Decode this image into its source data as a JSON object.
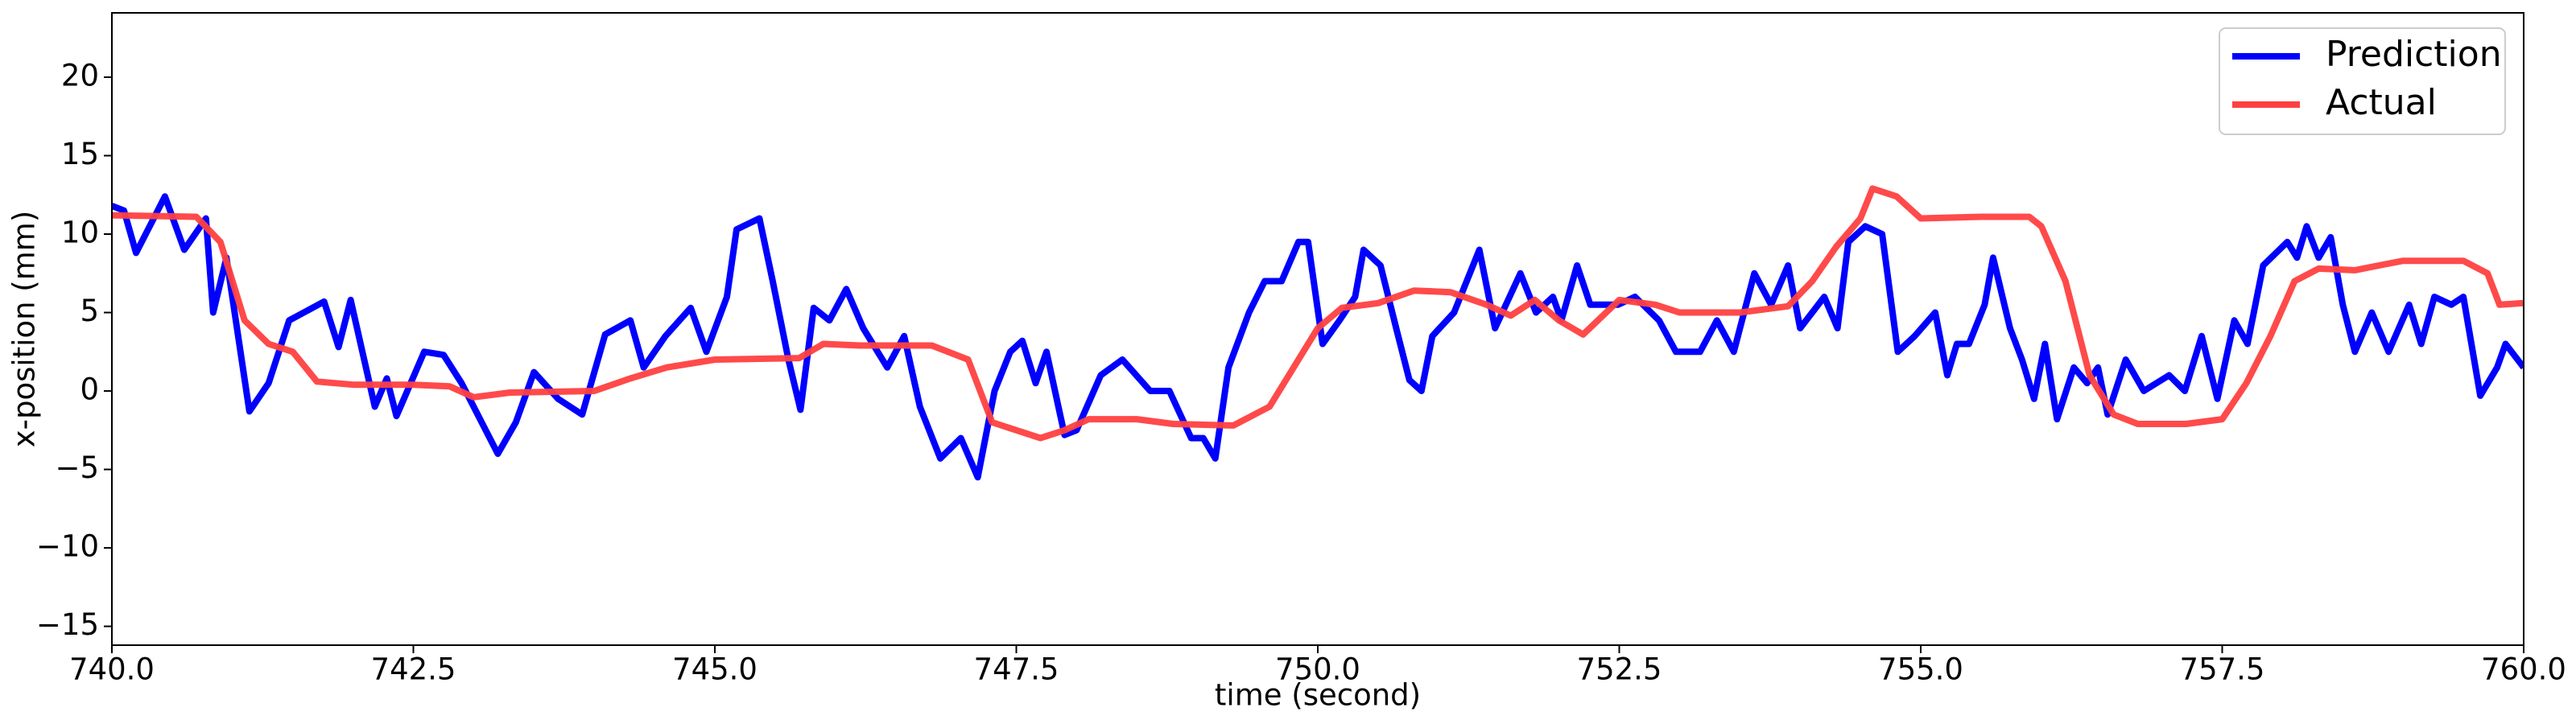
{
  "chart_data": {
    "type": "line",
    "xlabel": "time (second)",
    "ylabel": "x-position (mm)",
    "xlim": [
      740,
      760
    ],
    "xticks": [
      {
        "value": 740,
        "label": "740.0"
      },
      {
        "value": 742.5,
        "label": "742.5"
      },
      {
        "value": 745,
        "label": "745.0"
      },
      {
        "value": 747.5,
        "label": "747.5"
      },
      {
        "value": 750,
        "label": "750.0"
      },
      {
        "value": 752.5,
        "label": "752.5"
      },
      {
        "value": 755,
        "label": "755.0"
      },
      {
        "value": 757.5,
        "label": "757.5"
      },
      {
        "value": 760,
        "label": "760.0"
      }
    ],
    "ylim": [
      -16.2,
      24.1
    ],
    "yticks": [
      {
        "value": -15,
        "label": "−15"
      },
      {
        "value": -10,
        "label": "−10"
      },
      {
        "value": -5,
        "label": "−5"
      },
      0,
      5,
      10,
      15,
      20
    ],
    "legend": "upper right",
    "series": [
      {
        "name": "Prediction",
        "color": "#0000ff",
        "x": [
          740,
          740.1,
          740.2,
          740.44,
          740.6,
          740.78,
          740.84,
          740.95,
          741.14,
          741.3,
          741.47,
          741.76,
          741.88,
          741.98,
          742.18,
          742.28,
          742.36,
          742.59,
          742.75,
          742.9,
          743.2,
          743.35,
          743.5,
          743.7,
          743.9,
          744.09,
          744.3,
          744.41,
          744.59,
          744.8,
          744.93,
          745.1,
          745.18,
          745.37,
          745.48,
          745.61,
          745.71,
          745.82,
          745.95,
          746.09,
          746.23,
          746.43,
          746.57,
          746.7,
          746.87,
          747.04,
          747.18,
          747.32,
          747.45,
          747.55,
          747.66,
          747.75,
          747.9,
          748.0,
          748.2,
          748.38,
          748.61,
          748.77,
          748.95,
          749.05,
          749.15,
          749.26,
          749.43,
          749.56,
          749.7,
          749.84,
          749.92,
          750.04,
          750.18,
          750.31,
          750.38,
          750.52,
          750.65,
          750.76,
          750.86,
          750.95,
          751.13,
          751.34,
          751.47,
          751.68,
          751.81,
          751.95,
          752.02,
          752.15,
          752.26,
          752.49,
          752.63,
          752.83,
          752.97,
          753.17,
          753.31,
          753.45,
          753.62,
          753.76,
          753.9,
          754.0,
          754.2,
          754.31,
          754.4,
          754.54,
          754.68,
          754.81,
          754.95,
          755.12,
          755.22,
          755.3,
          755.4,
          755.53,
          755.6,
          755.74,
          755.84,
          755.94,
          756.03,
          756.13,
          756.27,
          756.38,
          756.47,
          756.55,
          756.7,
          756.85,
          757.06,
          757.19,
          757.33,
          757.46,
          757.6,
          757.71,
          757.84,
          758.04,
          758.12,
          758.2,
          758.3,
          758.4,
          758.5,
          758.6,
          758.74,
          758.88,
          759.05,
          759.15,
          759.26,
          759.4,
          759.5,
          759.64,
          759.78,
          759.85,
          760
        ],
        "values": [
          11.8,
          11.5,
          8.8,
          12.4,
          9.0,
          11.0,
          5.0,
          8.5,
          -1.3,
          0.5,
          4.5,
          5.7,
          2.8,
          5.8,
          -1.0,
          0.8,
          -1.6,
          2.5,
          2.3,
          0.5,
          -4.0,
          -2.0,
          1.2,
          -0.5,
          -1.5,
          3.6,
          4.5,
          1.5,
          3.5,
          5.3,
          2.5,
          6.0,
          10.3,
          11.0,
          7.0,
          2.0,
          -1.2,
          5.3,
          4.5,
          6.5,
          4.0,
          1.5,
          3.5,
          -1.0,
          -4.3,
          -3.0,
          -5.5,
          0.0,
          2.5,
          3.2,
          0.5,
          2.5,
          -2.8,
          -2.5,
          1.0,
          2.0,
          0.0,
          0.0,
          -3.0,
          -3.0,
          -4.3,
          1.5,
          5.0,
          7.0,
          7.0,
          9.5,
          9.5,
          3.0,
          4.5,
          6.0,
          9.0,
          8.0,
          4.0,
          0.7,
          0.0,
          3.5,
          5.0,
          9.0,
          4.0,
          7.5,
          5.0,
          6.0,
          4.5,
          8.0,
          5.5,
          5.5,
          6.0,
          4.5,
          2.5,
          2.5,
          4.5,
          2.5,
          7.5,
          5.5,
          8.0,
          4.0,
          6.0,
          4.0,
          9.5,
          10.5,
          10.0,
          2.5,
          3.5,
          5.0,
          1.0,
          3.0,
          3.0,
          5.5,
          8.5,
          4.0,
          2.0,
          -0.5,
          3.0,
          -1.8,
          1.5,
          0.5,
          1.5,
          -1.5,
          2.0,
          0.0,
          1.0,
          0.0,
          3.5,
          -0.5,
          4.5,
          3.0,
          8.0,
          9.5,
          8.5,
          10.5,
          8.5,
          9.8,
          5.5,
          2.5,
          5.0,
          2.5,
          5.5,
          3.0,
          6.0,
          5.5,
          6.0,
          -0.3,
          1.5,
          3.0,
          1.5
        ]
      },
      {
        "name": "Actual",
        "color": "#ff4040",
        "x": [
          740,
          740.7,
          740.9,
          741.1,
          741.3,
          741.5,
          741.7,
          742.0,
          742.5,
          742.8,
          743.0,
          743.3,
          744.0,
          744.3,
          744.6,
          745.0,
          745.7,
          745.9,
          746.2,
          746.8,
          747.1,
          747.3,
          747.5,
          747.7,
          747.9,
          748.1,
          748.5,
          748.8,
          749.3,
          749.6,
          749.8,
          750.0,
          750.2,
          750.5,
          750.8,
          751.1,
          751.4,
          751.6,
          751.8,
          752.0,
          752.2,
          752.5,
          752.8,
          753.0,
          753.5,
          753.9,
          754.1,
          754.3,
          754.5,
          754.6,
          754.8,
          755.0,
          755.5,
          755.9,
          756.0,
          756.2,
          756.4,
          756.6,
          756.8,
          757.2,
          757.5,
          757.7,
          757.9,
          758.1,
          758.3,
          758.6,
          758.8,
          759.0,
          759.5,
          759.7,
          759.8,
          760
        ],
        "values": [
          11.2,
          11.1,
          9.5,
          4.5,
          3.0,
          2.5,
          0.6,
          0.4,
          0.4,
          0.3,
          -0.4,
          -0.1,
          0.0,
          0.8,
          1.5,
          2.0,
          2.1,
          3.0,
          2.9,
          2.9,
          2.0,
          -2.0,
          -2.5,
          -3.0,
          -2.5,
          -1.8,
          -1.8,
          -2.1,
          -2.2,
          -1.0,
          1.5,
          4.0,
          5.3,
          5.6,
          6.4,
          6.3,
          5.5,
          4.8,
          5.8,
          4.5,
          3.6,
          5.8,
          5.5,
          5.0,
          5.0,
          5.4,
          7.0,
          9.2,
          11.0,
          12.9,
          12.4,
          11.0,
          11.1,
          11.1,
          10.5,
          7.0,
          1.0,
          -1.5,
          -2.1,
          -2.1,
          -1.8,
          0.5,
          3.5,
          7.0,
          7.8,
          7.7,
          8.0,
          8.3,
          8.3,
          7.5,
          5.5,
          5.6
        ]
      }
    ]
  }
}
